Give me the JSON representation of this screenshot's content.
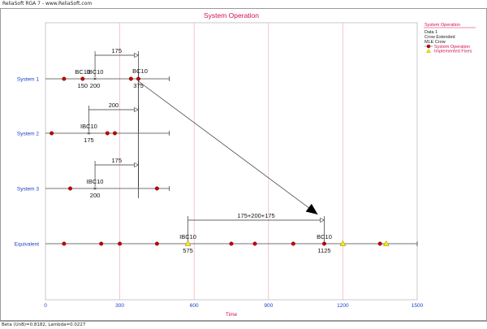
{
  "header": {
    "text": "ReliaSoft RGA 7 - www.ReliaSoft.com"
  },
  "footer": {
    "text": "Beta (UnB)=0.8182, Lambda=0.0227"
  },
  "legend": {
    "title": "System Operation",
    "lines": [
      "Data 1",
      "Crow Extended",
      "MLE Crow"
    ],
    "entries": [
      {
        "label": "System Operation",
        "marker": "circle",
        "color": "#c00000"
      },
      {
        "label": "Implemented Fixes",
        "marker": "triangle",
        "color": "#ffee00"
      }
    ]
  },
  "chart_data": {
    "type": "scatter",
    "title": "System Operation",
    "xlabel": "Time",
    "ylabel": "",
    "xlim": [
      0,
      1500
    ],
    "x_ticks": [
      0,
      300,
      600,
      900,
      1200,
      1500
    ],
    "grid": true,
    "gridline_color": "#f4b8c8",
    "categories": [
      "System 1",
      "System 2",
      "System 3",
      "Equivalent"
    ],
    "series": [
      {
        "name": "System Operation",
        "marker": "circle",
        "color": "#c00000",
        "points": [
          {
            "row": "System 1",
            "x": [
              75,
              150,
              345,
              375
            ]
          },
          {
            "row": "System 2",
            "x": [
              25,
              250,
              280
            ]
          },
          {
            "row": "System 3",
            "x": [
              100,
              450
            ]
          },
          {
            "row": "Equivalent",
            "x": [
              75,
              225,
              300,
              450,
              750,
              845,
              1000,
              1125,
              1350
            ]
          }
        ]
      },
      {
        "name": "Implemented Fixes",
        "marker": "triangle",
        "color": "#ffee00",
        "points": [
          {
            "row": "Equivalent",
            "x": [
              575,
              1200,
              1375
            ]
          }
        ]
      }
    ],
    "row_extents": [
      {
        "row": "System 1",
        "end": 500
      },
      {
        "row": "System 2",
        "end": 500
      },
      {
        "row": "System 3",
        "end": 500
      },
      {
        "row": "Equivalent",
        "end": 1500
      }
    ],
    "cross_marks": [
      {
        "row": "System 1",
        "x": 200
      },
      {
        "row": "System 2",
        "x": 175
      },
      {
        "row": "System 3",
        "x": 200
      }
    ],
    "annotations": [
      {
        "row": "System 1",
        "x": 150,
        "above": "BC10",
        "below": "150"
      },
      {
        "row": "System 1",
        "x": 200,
        "above": "IBC10",
        "below": "200"
      },
      {
        "row": "System 1",
        "x": 375,
        "above": "BC10",
        "below": "375",
        "above_offset": 2
      },
      {
        "row": "System 2",
        "x": 175,
        "above": "IBC10",
        "below": "175"
      },
      {
        "row": "System 3",
        "x": 200,
        "above": "IBC10",
        "below": "200"
      },
      {
        "row": "Equivalent",
        "x": 575,
        "above": "IBC10",
        "below": "575"
      },
      {
        "row": "Equivalent",
        "x": 1125,
        "above": "BC10",
        "below": "1125"
      }
    ],
    "dimension_arrows": [
      {
        "row": "System 1",
        "x_start": 200,
        "x_end": 375,
        "label": "175"
      },
      {
        "row": "System 2",
        "x_start": 175,
        "x_end": 375,
        "label": "200"
      },
      {
        "row": "System 3",
        "x_start": 200,
        "x_end": 375,
        "label": "175"
      },
      {
        "row": "Equivalent",
        "x_start": 575,
        "x_end": 1125,
        "label": "175+200+175"
      }
    ],
    "reference_line": {
      "x": 375,
      "from_row": "System 1",
      "to_row": "System 3"
    },
    "transfer_arrow": {
      "from": {
        "row": "System 1",
        "x": 375
      },
      "to": {
        "row": "Equivalent",
        "x": 1125
      }
    }
  }
}
